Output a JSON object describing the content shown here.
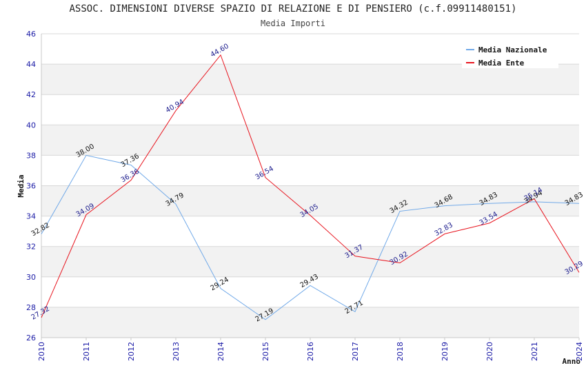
{
  "chart_data": {
    "type": "line",
    "title": "ASSOC. DIMENSIONI DIVERSE SPAZIO DI RELAZIONE E DI PENSIERO (c.f.09911480151)",
    "subtitle": "Media Importi",
    "xlabel": "Anno",
    "ylabel": "Media",
    "ylim": [
      26,
      46
    ],
    "yticks": [
      26,
      28,
      30,
      32,
      34,
      36,
      38,
      40,
      42,
      44,
      46
    ],
    "x": [
      "2010",
      "2011",
      "2012",
      "2013",
      "2014",
      "2015",
      "2016",
      "2017",
      "2018",
      "2019",
      "2020",
      "2021",
      "2024"
    ],
    "series": [
      {
        "name": "Media Nazionale",
        "color": "#6fa8e8",
        "values": [
          32.82,
          38.0,
          37.36,
          34.79,
          29.24,
          27.19,
          29.43,
          27.71,
          34.32,
          34.68,
          34.83,
          34.94,
          34.83
        ],
        "labels": [
          "32.82",
          "38.00",
          "37.36",
          "34.79",
          "29.24",
          "27.19",
          "29.43",
          "27.71",
          "34.32",
          "34.68",
          "34.83",
          "34.94",
          "34.83"
        ]
      },
      {
        "name": "Media Ente",
        "color": "#e8141e",
        "values": [
          27.32,
          34.09,
          36.36,
          40.94,
          44.6,
          36.54,
          34.05,
          31.37,
          30.92,
          32.83,
          33.54,
          35.14,
          30.29
        ],
        "labels": [
          "27.32",
          "34.09",
          "36.36",
          "40.94",
          "44.60",
          "36.54",
          "34.05",
          "31.37",
          "30.92",
          "32.83",
          "33.54",
          "35.14",
          "30.29"
        ]
      }
    ],
    "legend_position": "top-right",
    "grid": true
  }
}
